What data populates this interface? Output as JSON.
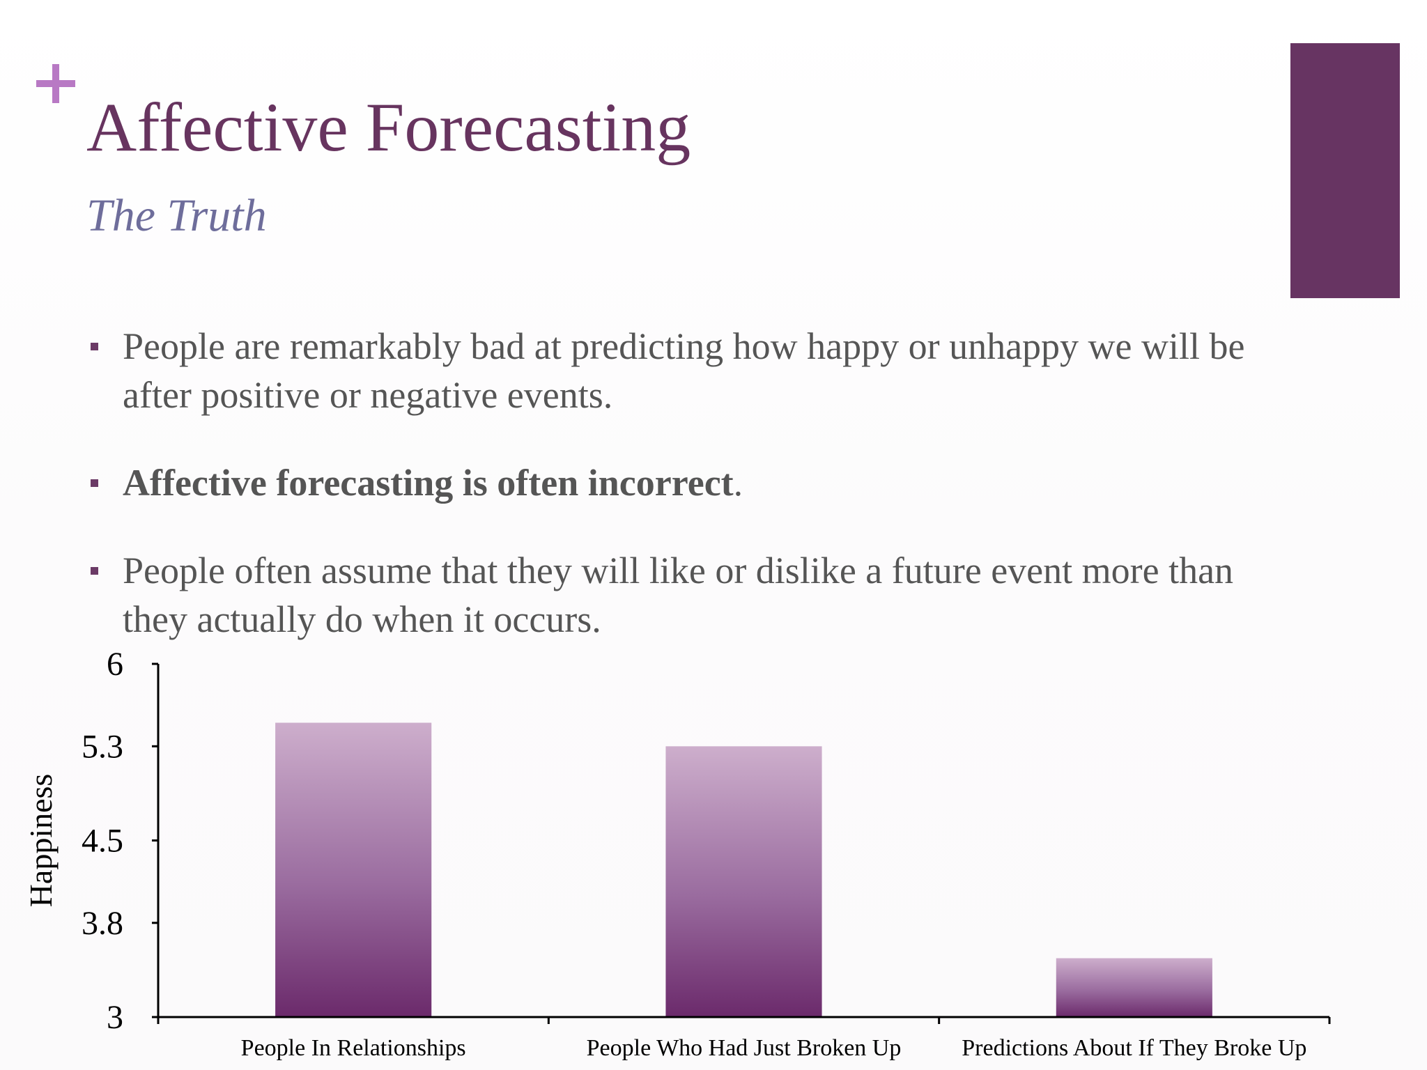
{
  "slide": {
    "title": "Affective Forecasting",
    "subtitle": "The Truth",
    "bullets": [
      {
        "text": "People are remarkably bad at predicting how happy or unhappy we will be after positive or negative events.",
        "suffix": "",
        "bold": false
      },
      {
        "text": "Affective forecasting is often incorrect",
        "suffix": ".",
        "bold": true
      },
      {
        "text": "People often assume that they will like or dislike a future event more than they actually do when it occurs.",
        "suffix": "",
        "bold": false
      }
    ],
    "colors": {
      "title": "#67345f",
      "subtitle": "#6e6d9b",
      "accent_block": "#673462",
      "plus": "#b879c4",
      "bar_top": "#cdaecc",
      "bar_bottom": "#6b2a6b"
    }
  },
  "chart_data": {
    "type": "bar",
    "categories": [
      "People In Relationships",
      "People Who Had Just Broken Up",
      "Predictions About If They Broke Up"
    ],
    "values": [
      5.5,
      5.3,
      3.5
    ],
    "title": "",
    "xlabel": "",
    "ylabel": "Happiness",
    "ylim": [
      3,
      6
    ],
    "yticks": [
      3,
      3.8,
      4.5,
      5.3,
      6
    ],
    "ytick_labels": [
      "3",
      "3.8",
      "4.5",
      "5.3",
      "6"
    ],
    "grid": false,
    "legend": "none"
  }
}
